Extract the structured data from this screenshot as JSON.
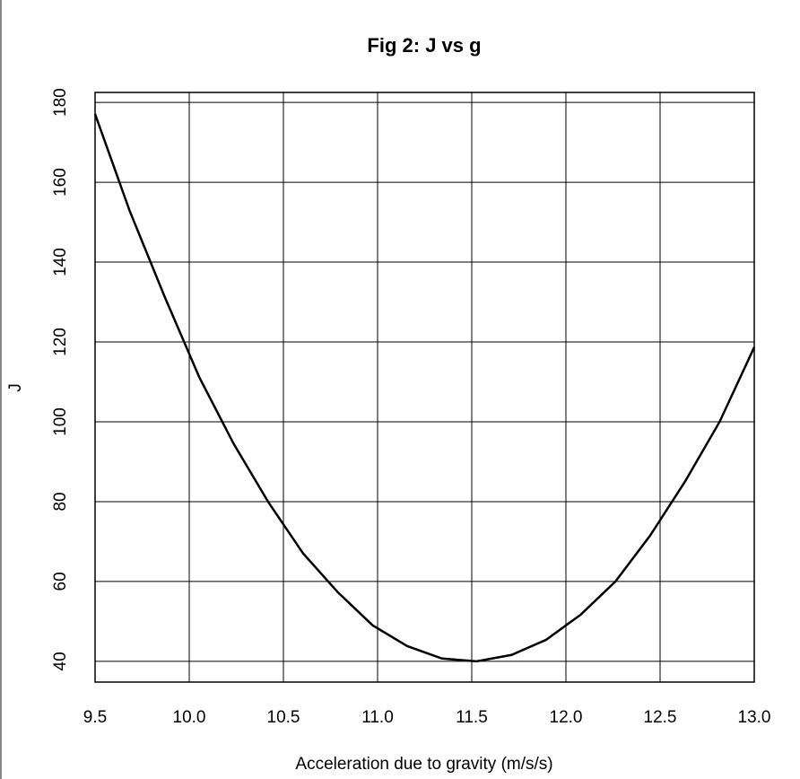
{
  "chart_data": {
    "type": "line",
    "title": "Fig 2: J vs g",
    "xlabel": "Acceleration due to gravity (m/s/s)",
    "ylabel": "J",
    "x": [
      9.5,
      9.684,
      9.868,
      10.053,
      10.237,
      10.421,
      10.605,
      10.789,
      10.974,
      11.158,
      11.342,
      11.526,
      11.711,
      11.895,
      12.079,
      12.263,
      12.447,
      12.632,
      12.816,
      13.0
    ],
    "series": [
      {
        "name": "J",
        "color": "#000000",
        "values": [
          177.1,
          152.8,
          131.5,
          111.2,
          94.4,
          79.8,
          67,
          57.3,
          49,
          43.8,
          40.7,
          40,
          41.6,
          45.4,
          51.7,
          60,
          71.5,
          85,
          100,
          118.7
        ]
      }
    ],
    "xlim": [
      9.5,
      13.0
    ],
    "xticks": [
      {
        "value": 9.5,
        "label": "9.5"
      },
      {
        "value": 10,
        "label": "10.0"
      },
      {
        "value": 10.5,
        "label": "10.5"
      },
      {
        "value": 11,
        "label": "11.0"
      },
      {
        "value": 11.5,
        "label": "11.5"
      },
      {
        "value": 12,
        "label": "12.0"
      },
      {
        "value": 12.5,
        "label": "12.5"
      },
      {
        "value": 13,
        "label": "13.0"
      }
    ],
    "ylim": [
      34.8,
      182.5
    ],
    "yticks": [
      40,
      60,
      80,
      100,
      120,
      140,
      160,
      180
    ],
    "grid": true
  }
}
